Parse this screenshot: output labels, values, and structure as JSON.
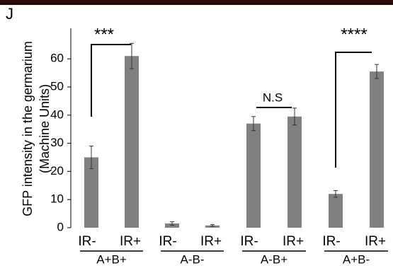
{
  "chart_data": {
    "type": "bar",
    "panel": "J",
    "y_label_lines": [
      "GFP intensity in the germarium",
      "(Machine Units)"
    ],
    "categories": [
      "IR-",
      "IR+",
      "IR-",
      "IR+",
      "IR-",
      "IR+",
      "IR-",
      "IR+"
    ],
    "groups": [
      "A+B+",
      "A-B-",
      "A-B+",
      "A+B-"
    ],
    "values": [
      25,
      61,
      1.5,
      0.8,
      37,
      39.5,
      12,
      55.5
    ],
    "errors": [
      4,
      4.5,
      0.6,
      0.3,
      2.5,
      3,
      1.2,
      2.5
    ],
    "color": "#808080",
    "annotations": [
      "***",
      "N.S",
      "****"
    ],
    "ylim": [
      0,
      65
    ],
    "yticks": [
      0,
      10,
      20,
      30,
      40,
      50,
      60
    ]
  }
}
